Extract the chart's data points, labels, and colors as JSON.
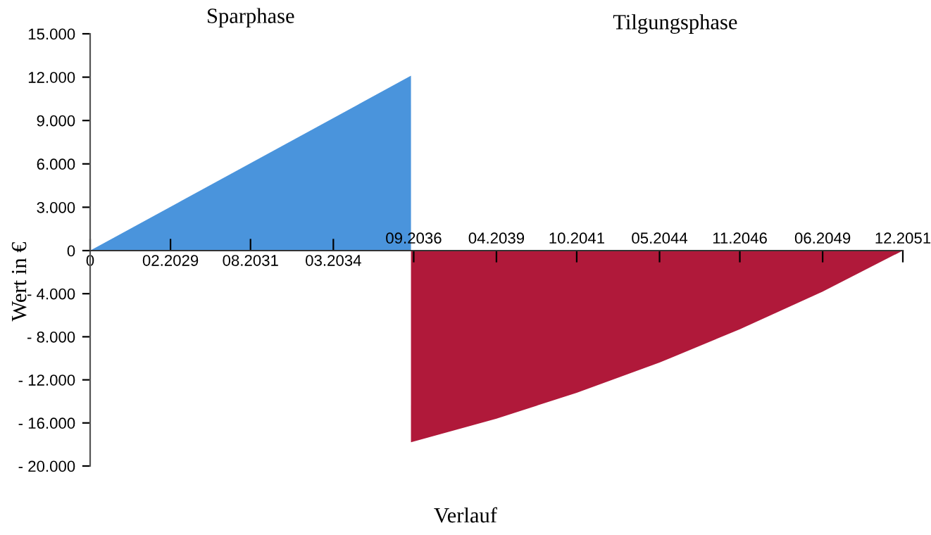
{
  "chart_data": [
    {
      "type": "area",
      "title": "Sparphase",
      "ylabel": "Wert in €",
      "annotations": [
        "Tilgungsphase"
      ],
      "x": [
        "2026-08",
        "2036-08"
      ],
      "series": [
        {
          "color": "#4a94dc",
          "values": [
            0,
            12100
          ]
        }
      ],
      "xlim": [
        "2026-08",
        "2051-12"
      ],
      "xticks": [
        {
          "value": "2026-08",
          "label": "0"
        },
        {
          "value": "2029-02",
          "label": "02.2029"
        },
        {
          "value": "2031-08",
          "label": "08.2031"
        },
        {
          "value": "2034-03",
          "label": "03.2034"
        }
      ],
      "ylim": [
        0,
        15000
      ],
      "yticks": [
        {
          "value": 0,
          "label": "0"
        },
        {
          "value": 3000,
          "label": "3.000"
        },
        {
          "value": 6000,
          "label": "6.000"
        },
        {
          "value": 9000,
          "label": "9.000"
        },
        {
          "value": 12000,
          "label": "12.000"
        },
        {
          "value": 15000,
          "label": "15.000"
        }
      ],
      "grid": false,
      "legend": false
    },
    {
      "type": "area",
      "xlabel": "Verlauf",
      "x": [
        "2036-08",
        "2039-04",
        "2041-10",
        "2044-05",
        "2046-11",
        "2049-06",
        "2051-12"
      ],
      "series": [
        {
          "color": "#b0193a",
          "values": [
            -17800,
            -15600,
            -13200,
            -10400,
            -7300,
            -3800,
            0
          ]
        }
      ],
      "xlim": [
        "2026-08",
        "2051-12"
      ],
      "xticks": [
        {
          "value": "2036-09",
          "label": "09.2036"
        },
        {
          "value": "2039-04",
          "label": "04.2039"
        },
        {
          "value": "2041-10",
          "label": "10.2041"
        },
        {
          "value": "2044-05",
          "label": "05.2044"
        },
        {
          "value": "2046-11",
          "label": "11.2046"
        },
        {
          "value": "2049-06",
          "label": "06.2049"
        },
        {
          "value": "2051-12",
          "label": "12.2051"
        }
      ],
      "ylim": [
        -20000,
        0
      ],
      "yticks": [
        {
          "value": -4000,
          "label": "- 4.000"
        },
        {
          "value": -8000,
          "label": "- 8.000"
        },
        {
          "value": -12000,
          "label": "- 12.000"
        },
        {
          "value": -16000,
          "label": "- 16.000"
        },
        {
          "value": -20000,
          "label": "- 20.000"
        }
      ],
      "grid": false,
      "legend": false
    }
  ]
}
